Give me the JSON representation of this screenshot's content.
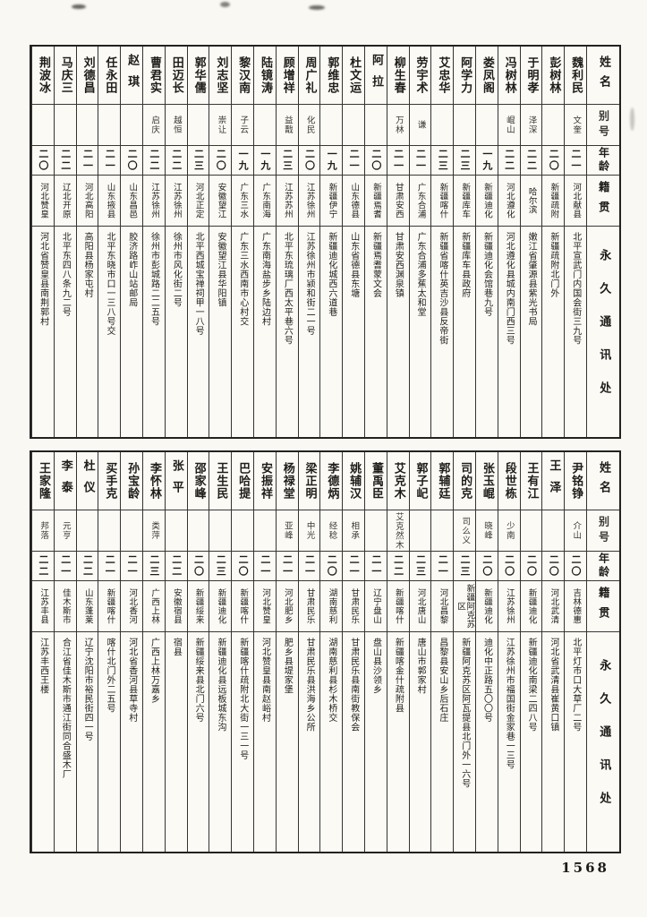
{
  "page": {
    "number": "1568"
  },
  "header_labels": {
    "name": "姓名",
    "alias": "别号",
    "age": "年龄",
    "origin": "籍贯",
    "address": "永久通讯处"
  },
  "tables": [
    {
      "entries": [
        {
          "name": "魏利民",
          "alias": "文奎",
          "age": "二一",
          "origin": "河北献县",
          "address": "北平宣武门内国会街三九号"
        },
        {
          "name": "彭树林",
          "alias": "",
          "age": "二〇",
          "origin": "新疆疏附",
          "address": "新疆疏附北门外"
        },
        {
          "name": "于明孝",
          "alias": "泽深",
          "age": "二二",
          "origin": "哈尔滨",
          "address": "嫩江省肇源县紫光书局"
        },
        {
          "name": "冯树林",
          "alias": "崐山",
          "age": "二二",
          "origin": "河北遵化",
          "address": "河北遵化县城内南门西三号"
        },
        {
          "name": "娄凤阁",
          "alias": "",
          "age": "一九",
          "origin": "新疆迪化",
          "address": "新疆迪化会馆巷九号"
        },
        {
          "name": "阿学力",
          "alias": "",
          "age": "二三",
          "origin": "新疆库车",
          "address": "新疆库车县政府"
        },
        {
          "name": "艾忠华",
          "alias": "",
          "age": "二三",
          "origin": "新疆喀什",
          "address": "新疆省喀什英吉沙县反帝街"
        },
        {
          "name": "劳宇术",
          "alias": "谦",
          "age": "二一",
          "origin": "广东合浦",
          "address": "广东合浦多蕉太和堂"
        },
        {
          "name": "柳生春",
          "alias": "万林",
          "age": "二一",
          "origin": "甘肃安西",
          "address": "甘肃安西渊泉镇"
        },
        {
          "name": "阿拉",
          "alias": "",
          "age": "二〇",
          "origin": "新疆焉耆",
          "address": "新疆焉耆蒙文会"
        },
        {
          "name": "杜文运",
          "alias": "",
          "age": "二一",
          "origin": "山东德县",
          "address": "山东省德县东塘"
        },
        {
          "name": "郭维忠",
          "alias": "",
          "age": "一九",
          "origin": "新疆伊宁",
          "address": "新疆迪化城西六道巷"
        },
        {
          "name": "周广礼",
          "alias": "化民",
          "age": "二〇",
          "origin": "江苏徐州",
          "address": "江苏徐州市颍和街二一号"
        },
        {
          "name": "顾增祥",
          "alias": "益戬",
          "age": "二三",
          "origin": "江苏苏州",
          "address": "北平东琉璃厂西太平巷六号"
        },
        {
          "name": "陆镜涛",
          "alias": "",
          "age": "一九",
          "origin": "广东南海",
          "address": "广东南海盐步乡陆边村"
        },
        {
          "name": "黎汉南",
          "alias": "子云",
          "age": "一九",
          "origin": "广东三水",
          "address": "广东三水西南市心村交"
        },
        {
          "name": "刘志坚",
          "alias": "崇让",
          "age": "二〇",
          "origin": "安徽望江",
          "address": "安徽望江县华阳镇"
        },
        {
          "name": "郭华儒",
          "alias": "",
          "age": "二三",
          "origin": "河北正定",
          "address": "北平西城宝禅祠甲一八号"
        },
        {
          "name": "田迈长",
          "alias": "越恒",
          "age": "二二",
          "origin": "江苏徐州",
          "address": "徐州市风化街二号"
        },
        {
          "name": "曹君实",
          "alias": "启庆",
          "age": "二二",
          "origin": "江苏徐州",
          "address": "徐州市彭城路二二五号"
        },
        {
          "name": "赵琪",
          "alias": "",
          "age": "二〇",
          "origin": "山东昌邑",
          "address": "胶济路岞山站邮局"
        },
        {
          "name": "任永田",
          "alias": "",
          "age": "二一",
          "origin": "山东掖县",
          "address": "北平东晓市口一三八号交"
        },
        {
          "name": "刘德昌",
          "alias": "",
          "age": "二一",
          "origin": "河北高阳",
          "address": "高阳县杨家屯村"
        },
        {
          "name": "马庆三",
          "alias": "",
          "age": "二二",
          "origin": "辽北开原",
          "address": "北平东四八条九二号"
        },
        {
          "name": "荆波冰",
          "alias": "",
          "age": "二〇",
          "origin": "河北赞皇",
          "address": "河北省赞皇县南荆郭村"
        }
      ]
    },
    {
      "entries": [
        {
          "name": "尹铭铮",
          "alias": "介山",
          "age": "二〇",
          "origin": "吉林德惠",
          "address": "北平灯市口大草厂二号"
        },
        {
          "name": "王泽",
          "alias": "",
          "age": "二〇",
          "origin": "河北武清",
          "address": "河北省武清县崔黄口镇"
        },
        {
          "name": "王有江",
          "alias": "",
          "age": "二〇",
          "origin": "新疆迪化",
          "address": "新疆迪化南梁二四八号"
        },
        {
          "name": "段世栋",
          "alias": "少南",
          "age": "二〇",
          "origin": "江苏徐州",
          "address": "江苏徐州市福国街金家巷一三号"
        },
        {
          "name": "张玉崐",
          "alias": "晓峰",
          "age": "二〇",
          "origin": "新疆迪化",
          "address": "迪化中正路五〇〇号"
        },
        {
          "name": "司的克",
          "alias": "司么义",
          "age": "二三",
          "origin": "新疆阿克苏区",
          "address": "新疆阿克苏区阿瓦提县北门外一六号"
        },
        {
          "name": "郭辅廷",
          "alias": "",
          "age": "二一",
          "origin": "河北昌黎",
          "address": "昌黎县安山乡后石庄"
        },
        {
          "name": "郭子屺",
          "alias": "",
          "age": "二三",
          "origin": "河北唐山",
          "address": "唐山市郭家村"
        },
        {
          "name": "艾克木",
          "alias": "艾克然木",
          "age": "二二",
          "origin": "新疆喀什",
          "address": "新疆喀金什疏附县"
        },
        {
          "name": "董禹臣",
          "alias": "",
          "age": "二一",
          "origin": "辽宁盘山",
          "address": "盘山县沙领乡"
        },
        {
          "name": "姚辅汉",
          "alias": "相承",
          "age": "二一",
          "origin": "甘肃民乐",
          "address": "甘肃民乐县南街教保会"
        },
        {
          "name": "李德炳",
          "alias": "经稔",
          "age": "二〇",
          "origin": "湖南慈利",
          "address": "湖南慈利县杉木桥交"
        },
        {
          "name": "梁正明",
          "alias": "中光",
          "age": "二一",
          "origin": "甘肃民乐",
          "address": "甘肃民乐县洪海乡公所"
        },
        {
          "name": "杨禄堂",
          "alias": "亚峰",
          "age": "二一",
          "origin": "河北肥乡",
          "address": "肥乡县堤家堡"
        },
        {
          "name": "安振祥",
          "alias": "",
          "age": "二一",
          "origin": "河北赞皇",
          "address": "河北赞皇县南赵峪村"
        },
        {
          "name": "巴哈提",
          "alias": "",
          "age": "二〇",
          "origin": "新疆喀什",
          "address": "新疆喀什疏附北大街一三一号"
        },
        {
          "name": "王生民",
          "alias": "",
          "age": "二三",
          "origin": "新疆迪化",
          "address": "新疆迪化县远板城东沟"
        },
        {
          "name": "邵家峰",
          "alias": "",
          "age": "二〇",
          "origin": "新疆绥来",
          "address": "新疆绥来县北门六号"
        },
        {
          "name": "张平",
          "alias": "",
          "age": "二二",
          "origin": "安徽宿县",
          "address": "宿县"
        },
        {
          "name": "李怀林",
          "alias": "类萍",
          "age": "二三",
          "origin": "广西上林",
          "address": "广西上林万嘉乡"
        },
        {
          "name": "孙宝龄",
          "alias": "",
          "age": "二一",
          "origin": "河北香河",
          "address": "河北省香河县草寺村"
        },
        {
          "name": "买手克",
          "alias": "",
          "age": "二一",
          "origin": "新疆喀什",
          "address": "喀什北门外二五号"
        },
        {
          "name": "杜仪",
          "alias": "",
          "age": "二二",
          "origin": "山东蓬莱",
          "address": "辽宁沈阳市裕民街四一号"
        },
        {
          "name": "李泰",
          "alias": "元亨",
          "age": "二一",
          "origin": "佳木斯市",
          "address": "合江省佳木斯市通江街同合盛木厂"
        },
        {
          "name": "王家隆",
          "alias": "邦落",
          "age": "二二",
          "origin": "江苏丰县",
          "address": "江苏丰西王楼"
        }
      ]
    }
  ]
}
